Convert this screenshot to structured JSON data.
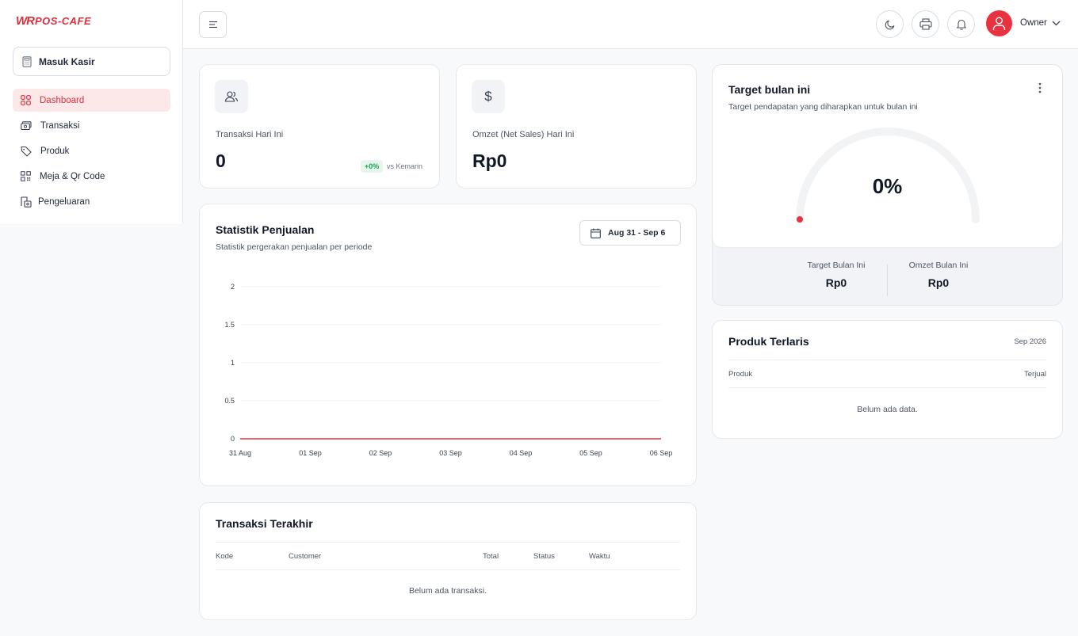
{
  "brand": {
    "mark": "WR",
    "text": "POS-CAFE",
    "color": "#dc2f3c"
  },
  "sidebar": {
    "kasir_label": "Masuk Kasir",
    "items": [
      {
        "label": "Dashboard",
        "icon": "grid-icon",
        "active": true
      },
      {
        "label": "Transaksi",
        "icon": "cash-icon"
      },
      {
        "label": "Produk",
        "icon": "tag-icon"
      },
      {
        "label": "Meja & Qr Code",
        "icon": "qr-code-icon"
      },
      {
        "label": "Pengeluaran",
        "icon": "receipt-icon"
      }
    ]
  },
  "header": {
    "user_name": "Owner",
    "icons": [
      "moon-icon",
      "printer-icon",
      "bell-icon",
      "user-icon"
    ]
  },
  "stats": {
    "transaksi": {
      "label": "Transaksi Hari Ini",
      "value": "0",
      "badge": "+0%",
      "vs": "vs Kemarin"
    },
    "omzet": {
      "label": "Omzet (Net Sales) Hari Ini",
      "value": "Rp0",
      "icon_symbol": "$"
    }
  },
  "statistik": {
    "title": "Statistik Penjualan",
    "subtitle": "Statistik pergerakan penjualan per periode",
    "date_range": "Aug 31 - Sep 6"
  },
  "chart_data": {
    "type": "line",
    "categories": [
      "31 Aug",
      "01 Sep",
      "02 Sep",
      "03 Sep",
      "04 Sep",
      "05 Sep",
      "06 Sep"
    ],
    "series": [
      {
        "values": [
          0,
          0,
          0,
          0,
          0,
          0,
          0
        ],
        "color": "#e8323f"
      }
    ],
    "yticks": [
      "0",
      "0.5",
      "1",
      "1.5",
      "2"
    ],
    "ylim": [
      0,
      2
    ],
    "grid": true
  },
  "transaksi_terakhir": {
    "title": "Transaksi Terakhir",
    "columns": [
      "Kode",
      "Customer",
      "Total",
      "Status",
      "Waktu"
    ],
    "empty": "Belum ada transaksi."
  },
  "target": {
    "title": "Target bulan ini",
    "subtitle": "Target pendapatan yang diharapkan untuk bulan ini",
    "percent": "0%",
    "progress": 0,
    "target_label": "Target Bulan Ini",
    "target_value": "Rp0",
    "omzet_label": "Omzet Bulan Ini",
    "omzet_value": "Rp0"
  },
  "produk_terlaris": {
    "title": "Produk Terlaris",
    "period": "Sep 2026",
    "columns": [
      "Produk",
      "Terjual"
    ],
    "empty": "Belum ada data."
  }
}
